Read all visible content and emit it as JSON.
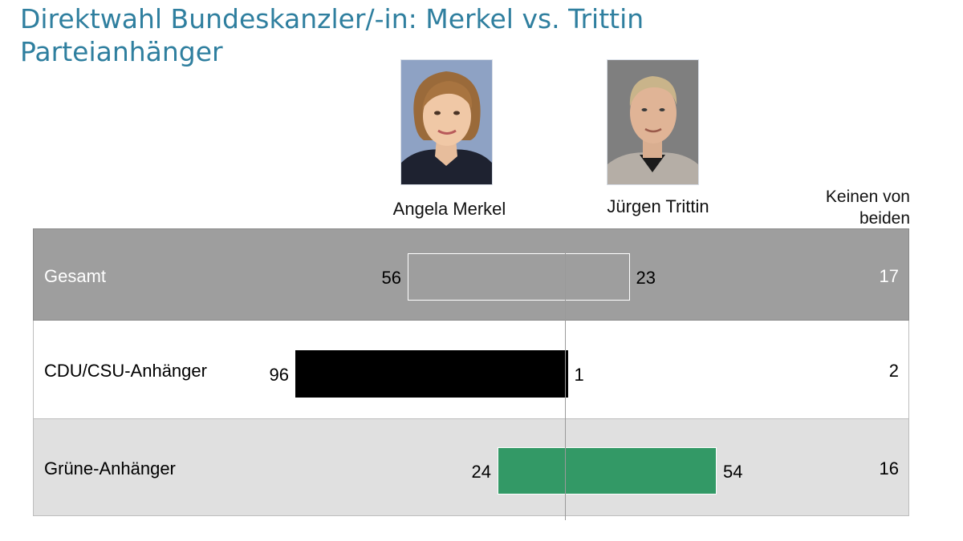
{
  "title": {
    "line1": "Direktwahl Bundeskanzler/-in: Merkel vs. Trittin",
    "line2": "Parteianhänger"
  },
  "columns": {
    "merkel": "Angela Merkel",
    "trittin": "Jürgen Trittin",
    "none_line1": "Keinen von",
    "none_line2": "beiden"
  },
  "colors": {
    "title": "#2f7f9f",
    "gesamt_bg": "#9e9e9e",
    "cdu_bg": "#ffffff",
    "gruene_bg": "#e0e0e0",
    "cdu_bar": "#000000",
    "gruene_bar": "#339966",
    "gesamt_bar": "#9e9e9e"
  },
  "chart_data": {
    "type": "bar",
    "orientation": "horizontal-diverging",
    "title": "Direktwahl Bundeskanzler/-in: Merkel vs. Trittin",
    "subtitle": "Parteianhänger",
    "unit": "percent",
    "categories": [
      "Gesamt",
      "CDU/CSU-Anhänger",
      "Grüne-Anhänger"
    ],
    "series": [
      {
        "name": "Angela Merkel",
        "values": [
          56,
          96,
          24
        ]
      },
      {
        "name": "Jürgen Trittin",
        "values": [
          23,
          1,
          54
        ]
      },
      {
        "name": "Keinen von beiden",
        "values": [
          17,
          2,
          16
        ]
      }
    ]
  }
}
